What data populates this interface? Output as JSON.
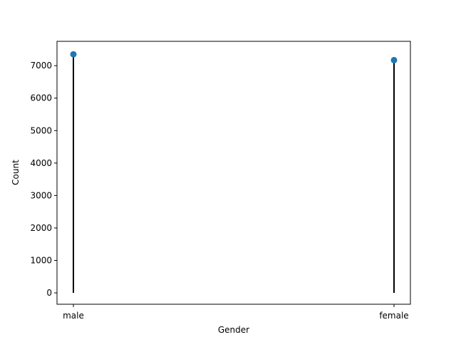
{
  "chart_data": {
    "type": "lollipop",
    "categories": [
      "male",
      "female"
    ],
    "values": [
      7350,
      7170
    ],
    "title": "",
    "xlabel": "Gender",
    "ylabel": "Count",
    "ylim": [
      -350,
      7750
    ],
    "yticks": [
      0,
      1000,
      2000,
      3000,
      4000,
      5000,
      6000,
      7000
    ],
    "grid": false,
    "stem_color": "#000000",
    "marker_color": "#1f77b4"
  }
}
